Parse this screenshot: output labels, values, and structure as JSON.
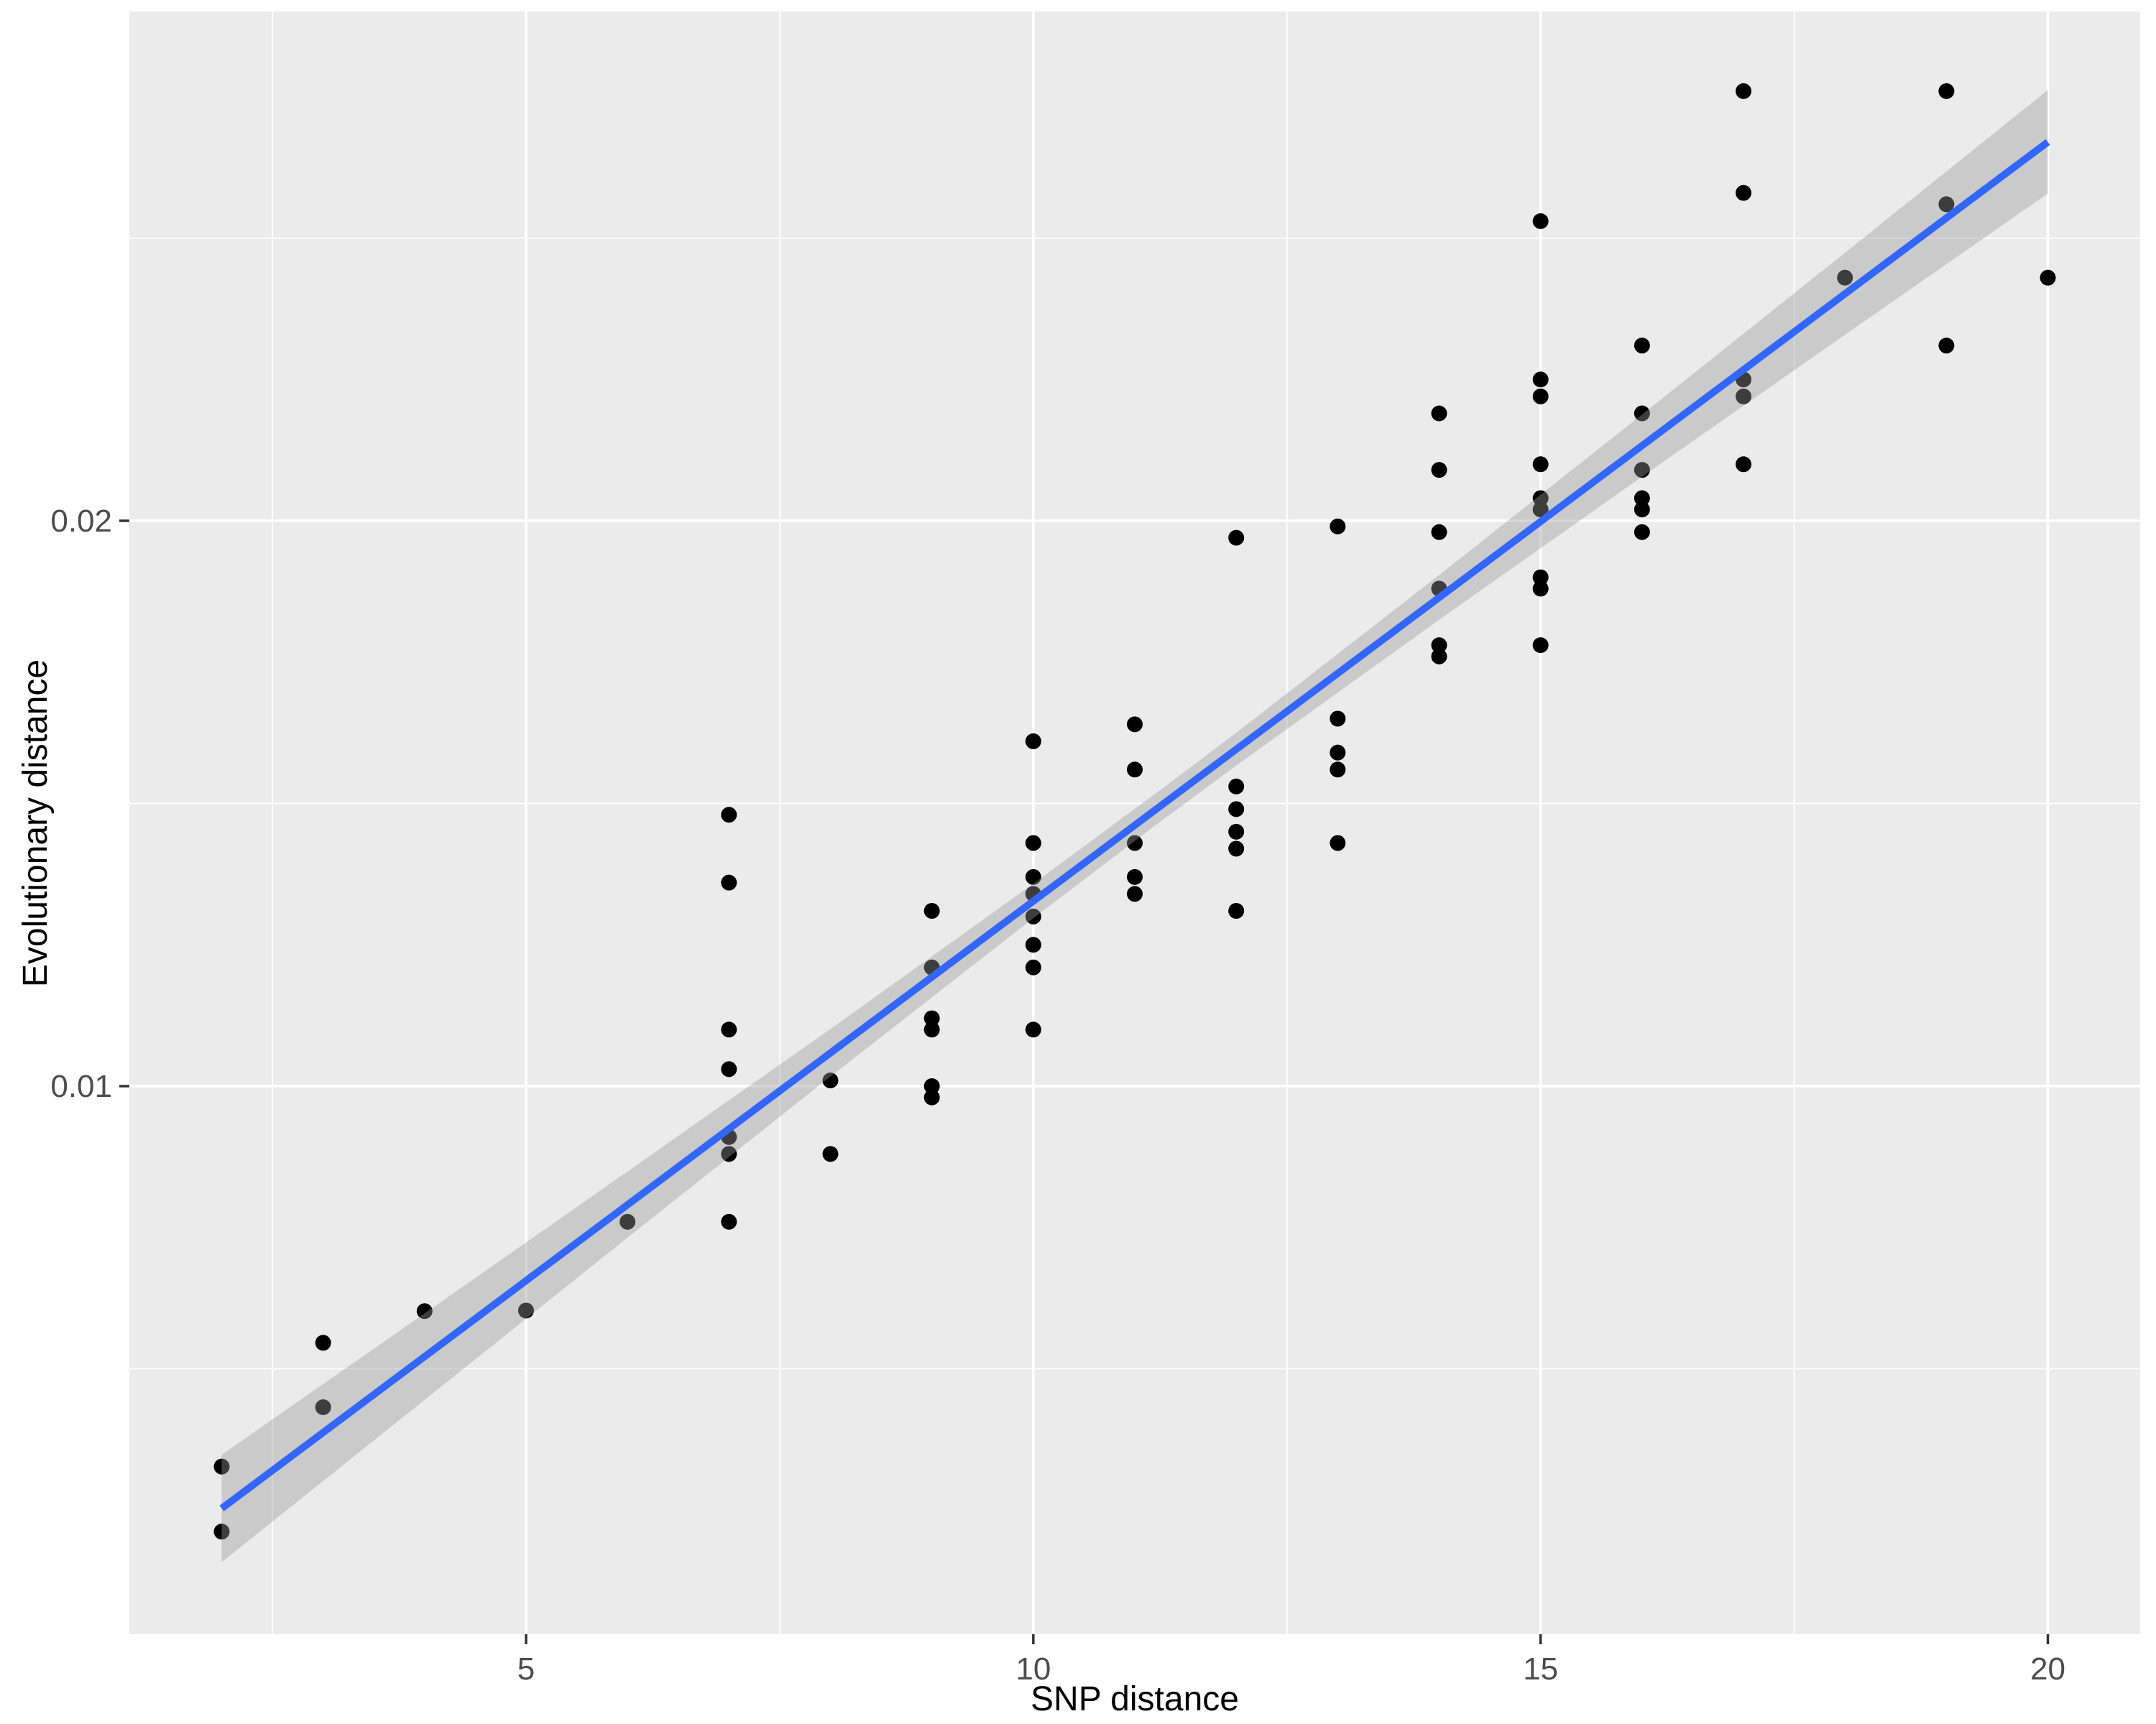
{
  "chart_data": {
    "type": "scatter",
    "title": "",
    "xlabel": "SNP distance",
    "ylabel": "Evolutionary distance",
    "xlim": [
      1.09,
      20.91
    ],
    "ylim": [
      0.000305,
      0.029009
    ],
    "x_major_breaks": [
      5,
      10,
      15,
      20
    ],
    "x_tick_labels": [
      "5",
      "10",
      "15",
      "20"
    ],
    "x_minor_breaks": [
      2.5,
      7.5,
      12.5,
      17.5
    ],
    "y_major_breaks": [
      0.01,
      0.02
    ],
    "y_tick_labels": [
      "0.01",
      "0.02"
    ],
    "y_minor_breaks": [
      0.005,
      0.015,
      0.025
    ],
    "grid": true,
    "legend_position": "none",
    "points": [
      [
        2,
        0.00327
      ],
      [
        2,
        0.00212
      ],
      [
        3,
        0.00546
      ],
      [
        3,
        0.00432
      ],
      [
        4,
        0.00602
      ],
      [
        5,
        0.00603
      ],
      [
        6,
        0.0076
      ],
      [
        7,
        0.0148
      ],
      [
        7,
        0.0136
      ],
      [
        7,
        0.011
      ],
      [
        7,
        0.0103
      ],
      [
        7,
        0.0091
      ],
      [
        7,
        0.0088
      ],
      [
        7,
        0.0076
      ],
      [
        8,
        0.0101
      ],
      [
        8,
        0.0088
      ],
      [
        9,
        0.0131
      ],
      [
        9,
        0.0121
      ],
      [
        9,
        0.0112
      ],
      [
        9,
        0.011
      ],
      [
        9,
        0.01
      ],
      [
        9,
        0.0098
      ],
      [
        10,
        0.0161
      ],
      [
        10,
        0.0143
      ],
      [
        10,
        0.0137
      ],
      [
        10,
        0.0134
      ],
      [
        10,
        0.013
      ],
      [
        10,
        0.0125
      ],
      [
        10,
        0.0121
      ],
      [
        10,
        0.011
      ],
      [
        11,
        0.0164
      ],
      [
        11,
        0.0156
      ],
      [
        11,
        0.0143
      ],
      [
        11,
        0.0137
      ],
      [
        11,
        0.0134
      ],
      [
        12,
        0.0197
      ],
      [
        12,
        0.0153
      ],
      [
        12,
        0.0149
      ],
      [
        12,
        0.0145
      ],
      [
        12,
        0.0142
      ],
      [
        12,
        0.0131
      ],
      [
        13,
        0.0199
      ],
      [
        13,
        0.0165
      ],
      [
        13,
        0.0159
      ],
      [
        13,
        0.0156
      ],
      [
        13,
        0.0143
      ],
      [
        14,
        0.0219
      ],
      [
        14,
        0.0209
      ],
      [
        14,
        0.0198
      ],
      [
        14,
        0.0188
      ],
      [
        14,
        0.0178
      ],
      [
        14,
        0.0176
      ],
      [
        15,
        0.0253
      ],
      [
        15,
        0.0225
      ],
      [
        15,
        0.0222
      ],
      [
        15,
        0.021
      ],
      [
        15,
        0.0204
      ],
      [
        15,
        0.0202
      ],
      [
        15,
        0.019
      ],
      [
        15,
        0.0188
      ],
      [
        15,
        0.0178
      ],
      [
        16,
        0.0231
      ],
      [
        16,
        0.0219
      ],
      [
        16,
        0.0209
      ],
      [
        16,
        0.0204
      ],
      [
        16,
        0.0202
      ],
      [
        16,
        0.0198
      ],
      [
        17,
        0.0276
      ],
      [
        17,
        0.0258
      ],
      [
        17,
        0.0225
      ],
      [
        17,
        0.0222
      ],
      [
        17,
        0.021
      ],
      [
        18,
        0.0243
      ],
      [
        19,
        0.0276
      ],
      [
        19,
        0.0256
      ],
      [
        19,
        0.0231
      ],
      [
        20,
        0.0243
      ]
    ],
    "trend_line": {
      "method": "linear",
      "x": [
        2,
        20
      ],
      "y": [
        0.00253,
        0.0267
      ]
    },
    "confidence_band": [
      [
        2,
        0.00158,
        0.00348
      ],
      [
        4,
        0.00445,
        0.00598
      ],
      [
        6,
        0.00732,
        0.00849
      ],
      [
        8,
        0.01017,
        0.01101
      ],
      [
        10,
        0.01297,
        0.01358
      ],
      [
        11.2,
        0.01461,
        0.01517
      ],
      [
        12,
        0.01567,
        0.01625
      ],
      [
        14,
        0.01825,
        0.01904
      ],
      [
        16,
        0.02078,
        0.02188
      ],
      [
        18,
        0.02329,
        0.02474
      ],
      [
        20,
        0.02579,
        0.02762
      ]
    ]
  },
  "style": {
    "panel_bg": "#EBEBEB",
    "grid_color": "#FFFFFF",
    "point_color": "#000000",
    "trend_color": "#3366FF",
    "band_color": "rgba(153,153,153,0.4)",
    "tick_label_color": "#4D4D4D",
    "tick_mark_color": "#333333"
  }
}
